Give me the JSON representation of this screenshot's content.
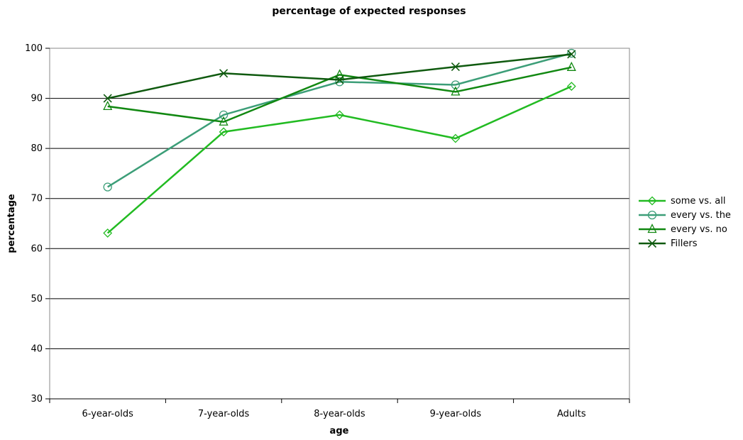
{
  "chart_data": {
    "type": "line",
    "title": "percentage of expected responses",
    "xlabel": "age",
    "ylabel": "percentage",
    "categories": [
      "6-year-olds",
      "7-year-olds",
      "8-year-olds",
      "9-year-olds",
      "Adults"
    ],
    "ylim": [
      30,
      100
    ],
    "yticks": [
      30,
      40,
      50,
      60,
      70,
      80,
      90,
      100
    ],
    "grid": true,
    "legend_position": "right",
    "series": [
      {
        "name": "some vs. all",
        "values": [
          63.1,
          83.3,
          86.7,
          82.0,
          92.4
        ],
        "color": "#22bb22",
        "marker": "diamond"
      },
      {
        "name": "every vs. the",
        "values": [
          72.3,
          86.7,
          93.3,
          92.7,
          99.0
        ],
        "color": "#3c9e78",
        "marker": "circle"
      },
      {
        "name": "every vs. no",
        "values": [
          88.4,
          85.3,
          94.7,
          91.3,
          96.2
        ],
        "color": "#118811",
        "marker": "triangle"
      },
      {
        "name": "Fillers",
        "values": [
          90.0,
          95.0,
          93.7,
          96.3,
          98.8
        ],
        "color": "#0f5a0f",
        "marker": "x"
      }
    ]
  }
}
